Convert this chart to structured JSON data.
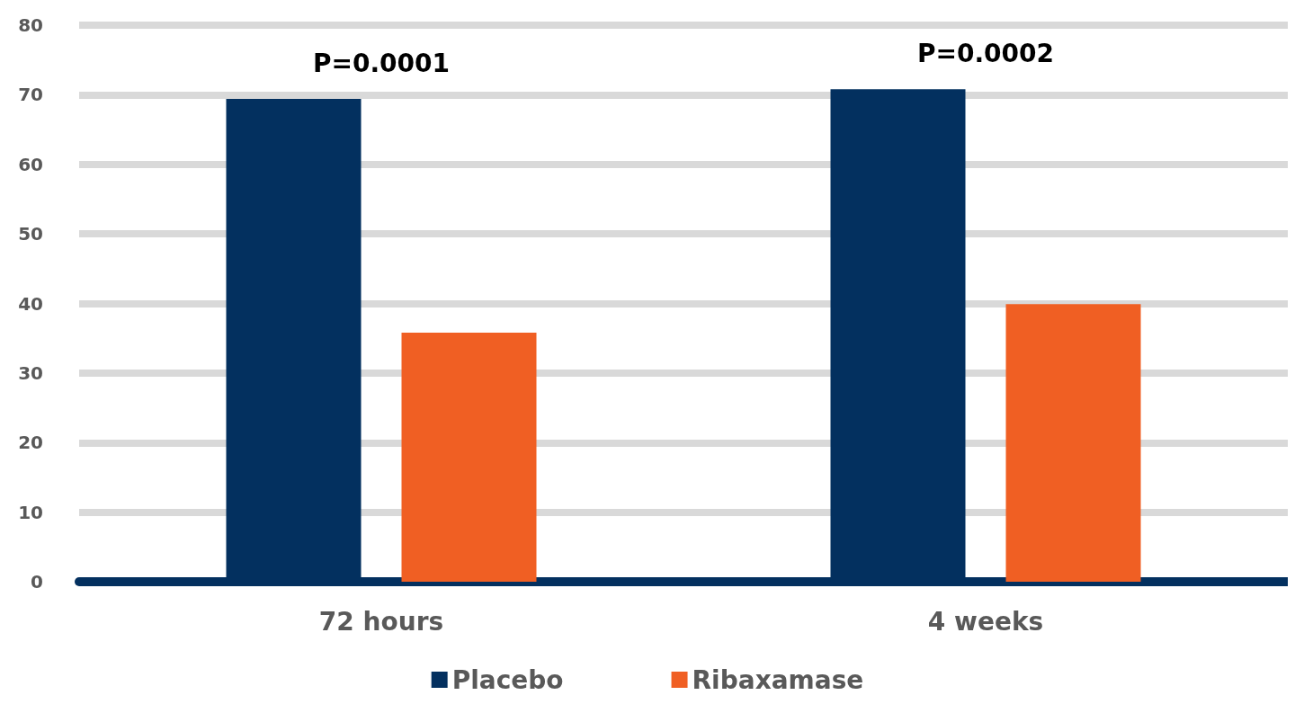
{
  "chart_data": {
    "type": "bar",
    "categories": [
      "72 hours",
      "4 weeks"
    ],
    "series": [
      {
        "name": "Placebo",
        "color": "#03305f",
        "values": [
          69.4,
          70.8
        ]
      },
      {
        "name": "Ribaxamase",
        "color": "#f05f23",
        "values": [
          35.8,
          39.9
        ]
      }
    ],
    "ylim": [
      0,
      80
    ],
    "yticks": [
      0,
      10,
      20,
      30,
      40,
      50,
      60,
      70,
      80
    ],
    "grid": "y",
    "legend": "bottom",
    "annotations": [
      "P=0.0001",
      "P=0.0002"
    ]
  }
}
